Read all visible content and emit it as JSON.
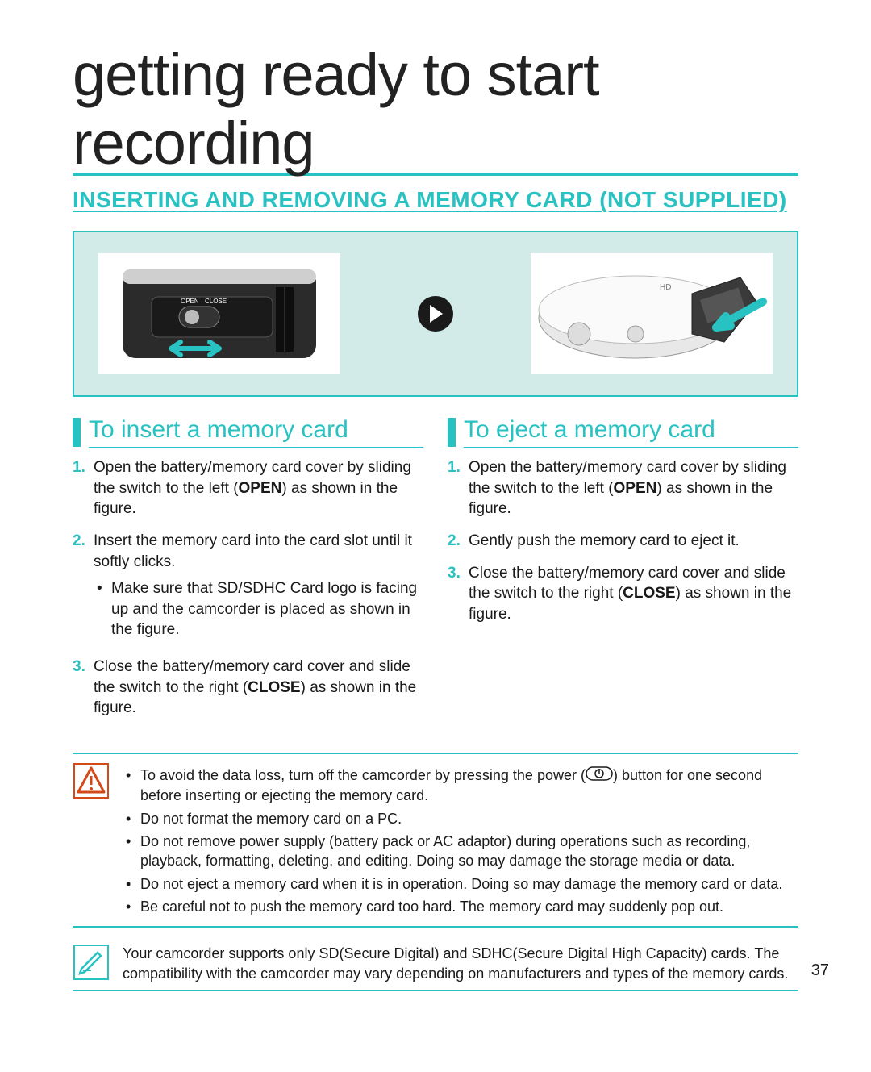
{
  "colors": {
    "accent": "#28c2c2",
    "text": "#1a1a1a",
    "figure_bg": "#d2ebe8",
    "page_bg": "#ffffff",
    "dark": "#222222"
  },
  "typography": {
    "display_fontsize": 74,
    "section_fontsize": 28,
    "col_title_fontsize": 30,
    "body_fontsize": 19,
    "note_fontsize": 18
  },
  "page": {
    "display_title": "getting ready to start recording",
    "section_title": "INSERTING AND REMOVING A MEMORY CARD (NOT SUPPLIED)",
    "page_number": "37"
  },
  "insert": {
    "title": "To insert a memory card",
    "steps": [
      {
        "num": "1.",
        "pre": "Open the battery/memory card cover by sliding the switch to the left (",
        "bold": "OPEN",
        "post": ") as shown in the figure."
      },
      {
        "num": "2.",
        "pre": "Insert the memory card into the card slot until it softly clicks.",
        "bold": "",
        "post": "",
        "sub": [
          "Make sure that SD/SDHC Card logo is facing up and the camcorder is placed as shown in the figure."
        ]
      },
      {
        "num": "3.",
        "pre": "Close the battery/memory card cover and slide the switch to the right (",
        "bold": "CLOSE",
        "post": ") as shown in the figure."
      }
    ]
  },
  "eject": {
    "title": "To eject a memory card",
    "steps": [
      {
        "num": "1.",
        "pre": "Open the battery/memory card cover by sliding the switch to the left (",
        "bold": "OPEN",
        "post": ") as shown in the figure."
      },
      {
        "num": "2.",
        "pre": "Gently push the memory card to eject it.",
        "bold": "",
        "post": ""
      },
      {
        "num": "3.",
        "pre": "Close the battery/memory card cover and slide the switch to the right (",
        "bold": "CLOSE",
        "post": ") as shown in the figure."
      }
    ]
  },
  "warning": {
    "items": [
      {
        "pre": "To avoid the data loss, turn off the camcorder by pressing the power (",
        "icon": true,
        "post": ") button for one second before inserting or ejecting the memory card."
      },
      {
        "pre": "Do not format the memory card on a PC.",
        "icon": false,
        "post": ""
      },
      {
        "pre": "Do not remove power supply (battery pack or AC adaptor) during operations such as recording, playback, formatting, deleting, and editing. Doing so may damage the storage media or data.",
        "icon": false,
        "post": ""
      },
      {
        "pre": "Do not eject a memory card when it is in operation. Doing so may damage the memory card or data.",
        "icon": false,
        "post": ""
      },
      {
        "pre": "Be careful not to push the memory card too hard. The memory card may suddenly pop out.",
        "icon": false,
        "post": ""
      }
    ]
  },
  "note": {
    "text": "Your camcorder supports only SD(Secure Digital) and SDHC(Secure Digital High Capacity) cards. The compatibility with the camcorder may vary depending on manufacturers and types of the memory cards."
  },
  "figure": {
    "left_alt": "camcorder-bottom-slide-open",
    "right_alt": "camcorder-card-slot-open",
    "arrow_alt": "proceed-arrow"
  }
}
